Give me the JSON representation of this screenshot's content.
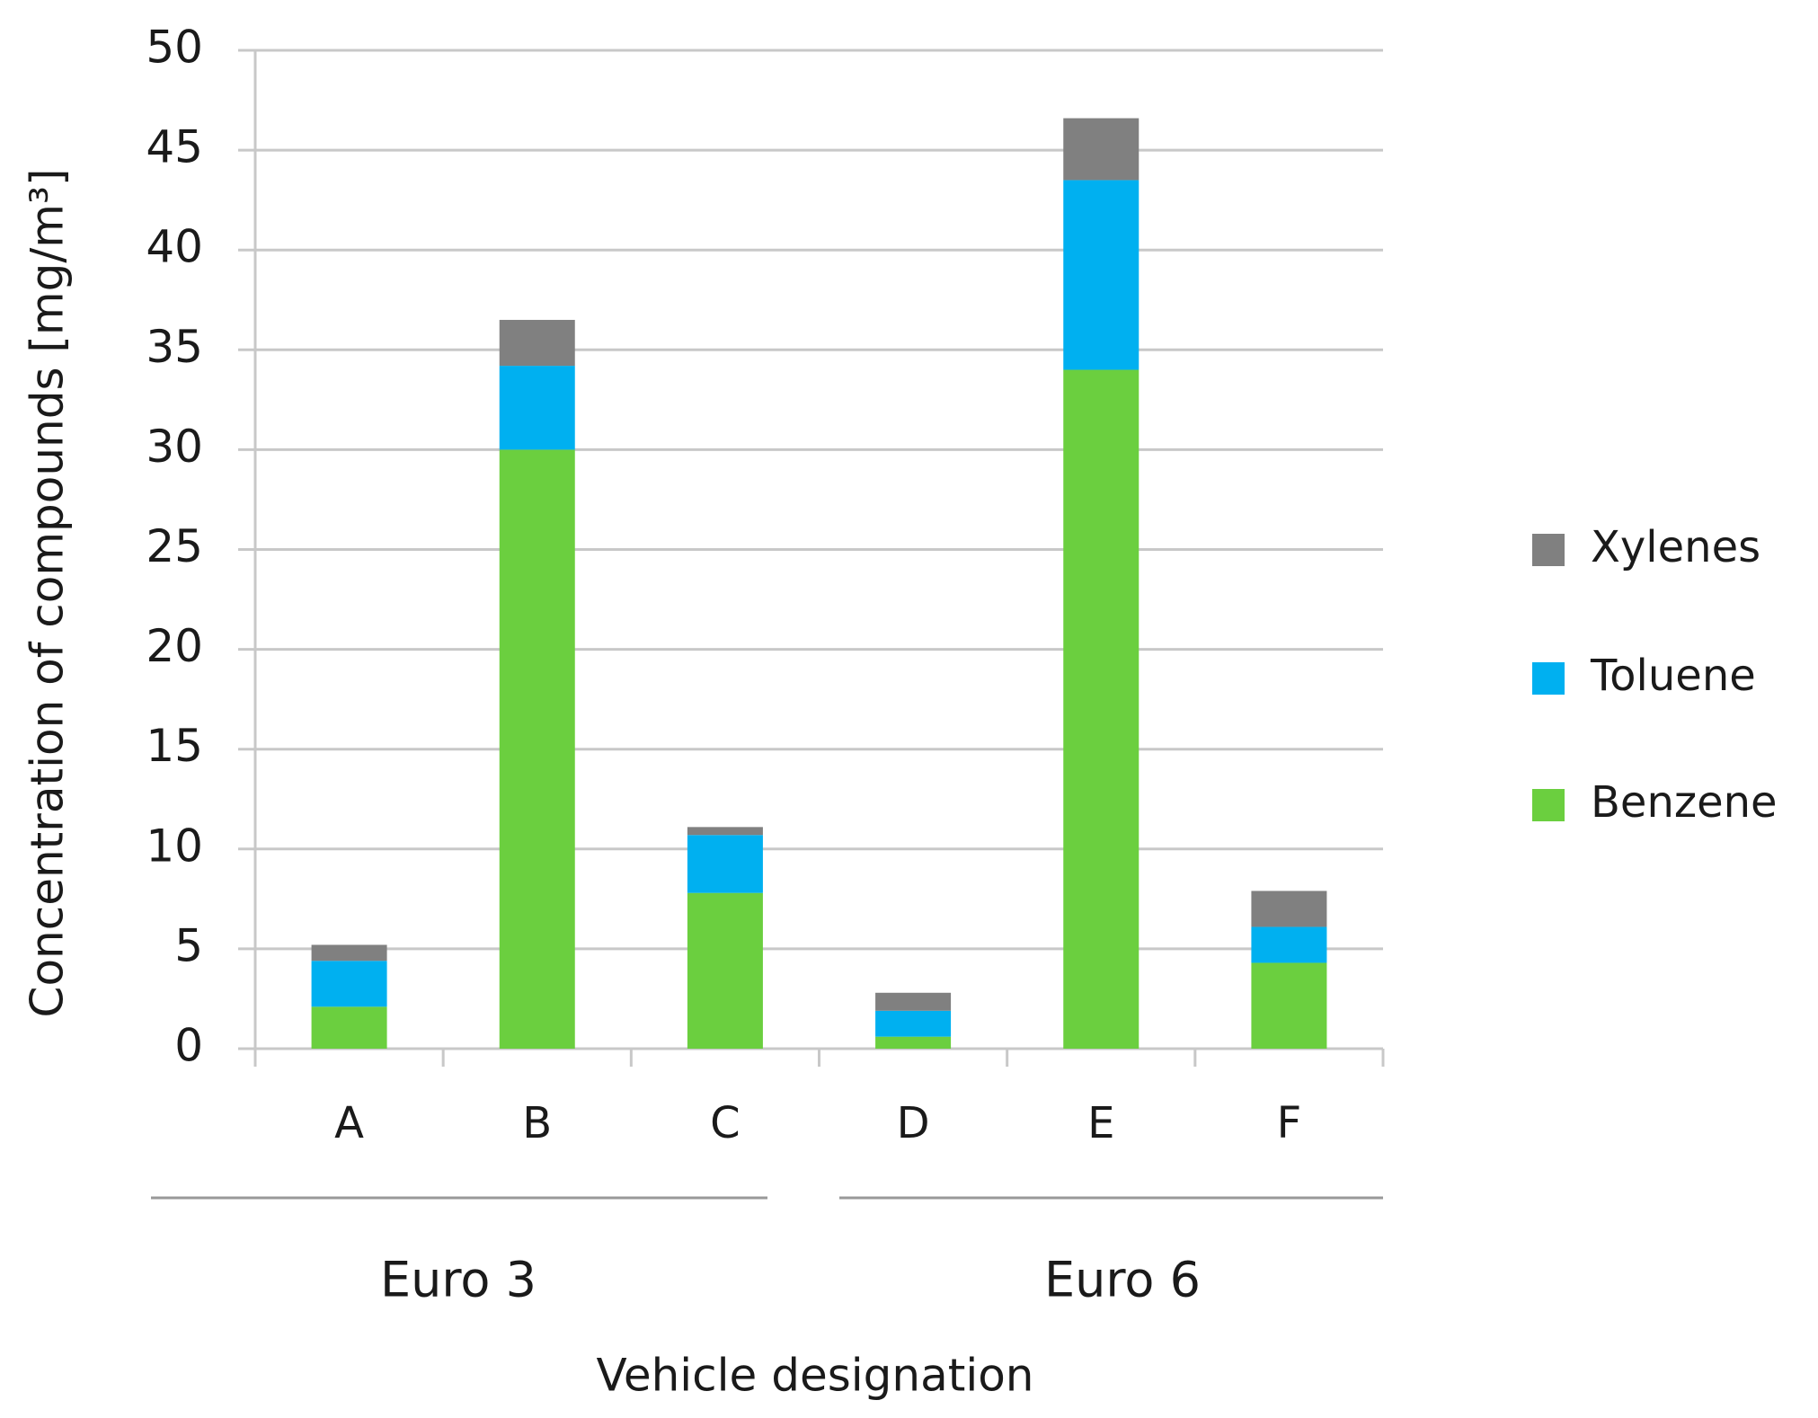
{
  "chart_data": {
    "type": "stacked-bar",
    "x_label": "Vehicle designation",
    "y_label": "Concentration of compounds [mg/m³]",
    "categories": [
      "A",
      "B",
      "C",
      "D",
      "E",
      "F"
    ],
    "group_labels": [
      "Euro 3",
      "Euro 6"
    ],
    "series": [
      {
        "name": "Benzene",
        "color": "#6bcf3f",
        "values": [
          2.1,
          30,
          7.8,
          0.6,
          34,
          4.3
        ]
      },
      {
        "name": "Toluene",
        "color": "#00b0f0",
        "values": [
          2.3,
          4.2,
          2.9,
          1.3,
          9.5,
          1.8
        ]
      },
      {
        "name": "Xylenes",
        "color": "#808080",
        "values": [
          0.8,
          2.3,
          0.4,
          0.9,
          3.1,
          1.8
        ]
      }
    ],
    "ylim": [
      0,
      50
    ],
    "yticks": [
      0,
      5,
      10,
      15,
      20,
      25,
      30,
      35,
      40,
      45,
      50
    ],
    "grid": true,
    "legend": "right"
  }
}
